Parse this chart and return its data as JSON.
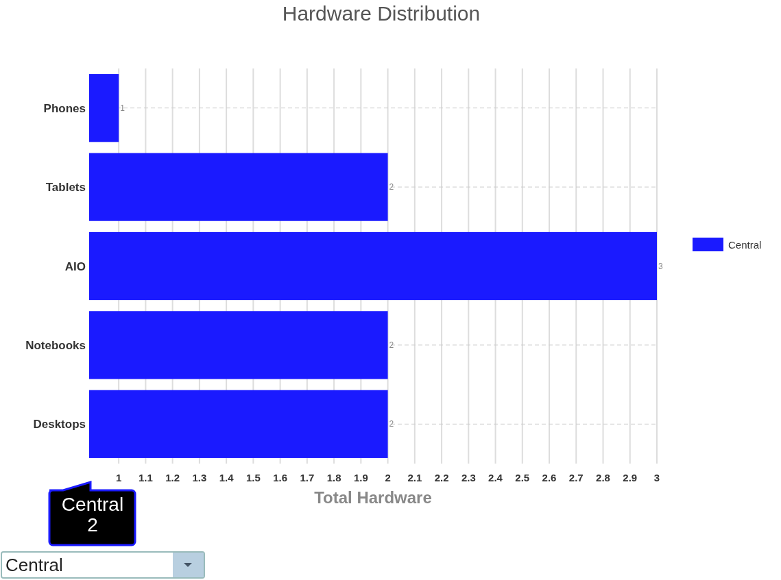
{
  "chart_data": {
    "type": "bar",
    "orientation": "horizontal",
    "title": "Hardware Distribution",
    "xlabel": "Total Hardware",
    "categories": [
      "Phones",
      "Tablets",
      "AIO",
      "Notebooks",
      "Desktops"
    ],
    "series": [
      {
        "name": "Central",
        "color": "#1a1aff",
        "values": [
          1,
          2,
          3,
          2,
          2
        ]
      }
    ],
    "xlim": [
      0.89,
      3
    ],
    "xticks": [
      1,
      1.1,
      1.2,
      1.3,
      1.4,
      1.5,
      1.6,
      1.7,
      1.8,
      1.9,
      2,
      2.1,
      2.2,
      2.3,
      2.4,
      2.5,
      2.6,
      2.7,
      2.8,
      2.9,
      3
    ],
    "grid": true,
    "data_labels": true,
    "legend": "right",
    "annotations": [
      "Central\n2",
      "Central"
    ]
  }
}
